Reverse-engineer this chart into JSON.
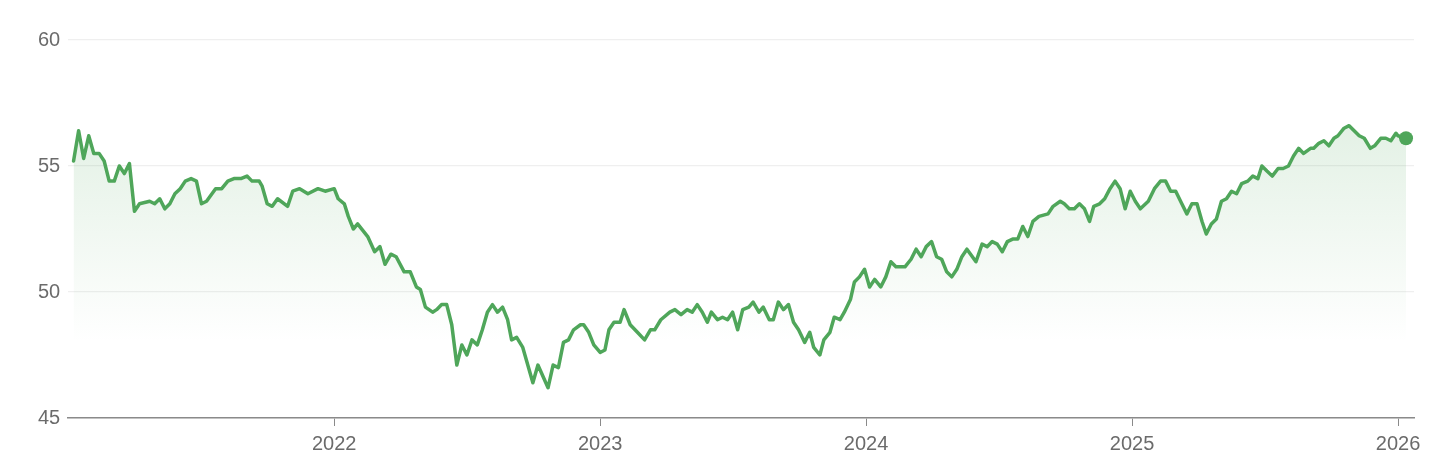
{
  "chart_data": {
    "type": "area",
    "xlim": [
      2021.0,
      2026.06
    ],
    "xticks": [
      2022,
      2023,
      2024,
      2025,
      2026
    ],
    "ylim": [
      45,
      60
    ],
    "yticks": [
      45,
      50,
      55,
      60
    ],
    "grid": "y",
    "legend": false,
    "series": [
      {
        "color": "#4fa65a",
        "x": [
          2021.02,
          2021.039,
          2021.058,
          2021.077,
          2021.096,
          2021.116,
          2021.135,
          2021.154,
          2021.173,
          2021.192,
          2021.211,
          2021.23,
          2021.249,
          2021.268,
          2021.306,
          2021.325,
          2021.344,
          2021.363,
          2021.382,
          2021.401,
          2021.421,
          2021.44,
          2021.462,
          2021.482,
          2021.501,
          2021.52,
          2021.554,
          2021.577,
          2021.6,
          2021.623,
          2021.649,
          2021.672,
          2021.691,
          2021.718,
          2021.729,
          2021.748,
          2021.767,
          2021.787,
          2021.825,
          2021.844,
          2021.87,
          2021.901,
          2021.939,
          2021.966,
          2022.0,
          2022.015,
          2022.038,
          2022.053,
          2022.072,
          2022.088,
          2022.126,
          2022.152,
          2022.172,
          2022.191,
          2022.213,
          2022.233,
          2022.263,
          2022.286,
          2022.309,
          2022.324,
          2022.343,
          2022.37,
          2022.385,
          2022.404,
          2022.423,
          2022.442,
          2022.461,
          2022.48,
          2022.499,
          2022.518,
          2022.538,
          2022.557,
          2022.576,
          2022.595,
          2022.614,
          2022.633,
          2022.652,
          2022.667,
          2022.686,
          2022.709,
          2022.747,
          2022.766,
          2022.804,
          2022.823,
          2022.843,
          2022.862,
          2022.881,
          2022.9,
          2022.926,
          2022.938,
          2022.957,
          2022.976,
          2023.0,
          2023.018,
          2023.033,
          2023.052,
          2023.075,
          2023.09,
          2023.113,
          2023.14,
          2023.167,
          2023.189,
          2023.205,
          2023.228,
          2023.262,
          2023.281,
          2023.304,
          2023.327,
          2023.346,
          2023.365,
          2023.384,
          2023.403,
          2023.418,
          2023.441,
          2023.46,
          2023.479,
          2023.498,
          2023.517,
          2023.536,
          2023.559,
          2023.575,
          2023.597,
          2023.613,
          2023.636,
          2023.651,
          2023.67,
          2023.689,
          2023.708,
          2023.727,
          2023.746,
          2023.769,
          2023.788,
          2023.803,
          2023.826,
          2023.841,
          2023.864,
          2023.88,
          2023.902,
          2023.918,
          2023.941,
          2023.956,
          2023.975,
          2023.994,
          2024.013,
          2024.032,
          2024.055,
          2024.074,
          2024.093,
          2024.112,
          2024.146,
          2024.169,
          2024.188,
          2024.207,
          2024.226,
          2024.246,
          2024.265,
          2024.284,
          2024.303,
          2024.322,
          2024.341,
          2024.36,
          2024.379,
          2024.413,
          2024.436,
          2024.455,
          2024.474,
          2024.493,
          2024.512,
          2024.531,
          2024.551,
          2024.57,
          2024.589,
          2024.608,
          2024.627,
          2024.65,
          2024.684,
          2024.703,
          2024.73,
          2024.745,
          2024.764,
          2024.783,
          2024.802,
          2024.821,
          2024.84,
          2024.856,
          2024.878,
          2024.897,
          2024.917,
          2024.936,
          2024.955,
          2024.974,
          2024.993,
          2025.012,
          2025.031,
          2025.061,
          2025.084,
          2025.107,
          2025.126,
          2025.145,
          2025.164,
          2025.187,
          2025.206,
          2025.225,
          2025.244,
          2025.263,
          2025.279,
          2025.298,
          2025.317,
          2025.336,
          2025.355,
          2025.374,
          2025.393,
          2025.412,
          2025.435,
          2025.454,
          2025.473,
          2025.488,
          2025.507,
          2025.527,
          2025.549,
          2025.568,
          2025.588,
          2025.607,
          2025.626,
          2025.645,
          2025.671,
          2025.683,
          2025.702,
          2025.721,
          2025.74,
          2025.759,
          2025.774,
          2025.797,
          2025.816,
          2025.835,
          2025.854,
          2025.873,
          2025.896,
          2025.912,
          2025.935,
          2025.954,
          2025.973,
          2025.992,
          2026.0,
          2026.03
        ],
        "values": [
          55.2,
          56.4,
          55.3,
          56.2,
          55.5,
          55.5,
          55.2,
          54.4,
          54.4,
          55.0,
          54.7,
          55.1,
          53.2,
          53.5,
          53.6,
          53.5,
          53.7,
          53.3,
          53.5,
          53.9,
          54.1,
          54.4,
          54.5,
          54.4,
          53.5,
          53.6,
          54.1,
          54.1,
          54.4,
          54.5,
          54.5,
          54.6,
          54.4,
          54.4,
          54.2,
          53.5,
          53.4,
          53.7,
          53.4,
          54.0,
          54.1,
          53.9,
          54.1,
          54.0,
          54.1,
          53.7,
          53.5,
          53.0,
          52.5,
          52.7,
          52.2,
          51.6,
          51.8,
          51.1,
          51.5,
          51.4,
          50.8,
          50.8,
          50.2,
          50.1,
          49.4,
          49.2,
          49.3,
          49.5,
          49.5,
          48.7,
          47.1,
          47.9,
          47.5,
          48.1,
          47.9,
          48.5,
          49.2,
          49.5,
          49.2,
          49.4,
          48.9,
          48.1,
          48.2,
          47.8,
          46.4,
          47.1,
          46.2,
          47.1,
          47.0,
          48.0,
          48.1,
          48.5,
          48.7,
          48.7,
          48.4,
          47.9,
          47.6,
          47.7,
          48.5,
          48.8,
          48.8,
          49.3,
          48.7,
          48.4,
          48.1,
          48.5,
          48.5,
          48.9,
          49.2,
          49.3,
          49.1,
          49.3,
          49.2,
          49.5,
          49.2,
          48.8,
          49.2,
          48.9,
          49.0,
          48.9,
          49.2,
          48.5,
          49.3,
          49.4,
          49.6,
          49.2,
          49.4,
          48.9,
          48.9,
          49.6,
          49.3,
          49.5,
          48.8,
          48.5,
          48.0,
          48.4,
          47.8,
          47.5,
          48.1,
          48.4,
          49.0,
          48.9,
          49.2,
          49.7,
          50.4,
          50.6,
          50.9,
          50.2,
          50.5,
          50.2,
          50.6,
          51.2,
          51.0,
          51.0,
          51.3,
          51.7,
          51.4,
          51.8,
          52.0,
          51.4,
          51.3,
          50.8,
          50.6,
          50.9,
          51.4,
          51.7,
          51.2,
          51.9,
          51.8,
          52.0,
          51.9,
          51.6,
          52.0,
          52.1,
          52.1,
          52.6,
          52.2,
          52.8,
          53.0,
          53.1,
          53.4,
          53.6,
          53.5,
          53.3,
          53.3,
          53.5,
          53.3,
          52.8,
          53.4,
          53.5,
          53.7,
          54.1,
          54.4,
          54.1,
          53.3,
          54.0,
          53.6,
          53.3,
          53.6,
          54.1,
          54.4,
          54.4,
          54.0,
          54.0,
          53.5,
          53.1,
          53.5,
          53.5,
          52.8,
          52.3,
          52.7,
          52.9,
          53.6,
          53.7,
          54.0,
          53.9,
          54.3,
          54.4,
          54.6,
          54.5,
          55.0,
          54.8,
          54.6,
          54.9,
          54.9,
          55.0,
          55.4,
          55.7,
          55.5,
          55.7,
          55.7,
          55.9,
          56.0,
          55.8,
          56.1,
          56.2,
          56.5,
          56.6,
          56.4,
          56.2,
          56.1,
          55.7,
          55.8,
          56.1,
          56.1,
          56.0,
          56.3,
          56.2,
          56.1
        ]
      }
    ]
  }
}
